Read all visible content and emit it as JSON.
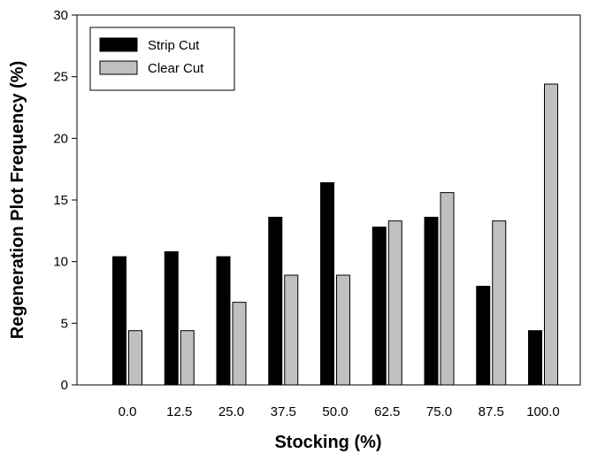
{
  "chart_data": {
    "type": "bar",
    "xlabel": "Stocking (%)",
    "ylabel": "Regeneration Plot Frequency (%)",
    "categories": [
      "0.0",
      "12.5",
      "25.0",
      "37.5",
      "50.0",
      "62.5",
      "75.0",
      "87.5",
      "100.0"
    ],
    "series": [
      {
        "name": "Strip Cut",
        "color": "#000000",
        "values": [
          10.4,
          10.8,
          10.4,
          13.6,
          16.4,
          12.8,
          13.6,
          8.0,
          4.4
        ]
      },
      {
        "name": "Clear Cut",
        "color": "#c0c0c0",
        "values": [
          4.4,
          4.4,
          6.7,
          8.9,
          8.9,
          13.3,
          15.6,
          13.3,
          24.4
        ]
      }
    ],
    "ylim": [
      0,
      30
    ],
    "yticks": [
      "0",
      "5",
      "10",
      "15",
      "20",
      "25",
      "30"
    ],
    "grid": false,
    "legend_position": "top-left"
  }
}
